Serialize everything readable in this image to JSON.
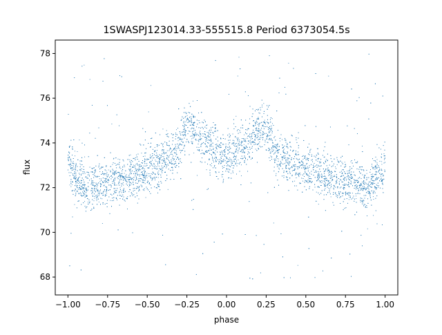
{
  "chart_data": {
    "type": "scatter",
    "title": "1SWASPJ123014.33-555515.8 Period 6373054.5s",
    "xlabel": "phase",
    "ylabel": "flux",
    "xlim": [
      -1.08,
      1.08
    ],
    "ylim": [
      67.2,
      78.6
    ],
    "xticks": [
      -1.0,
      -0.75,
      -0.5,
      -0.25,
      0.0,
      0.25,
      0.5,
      0.75,
      1.0
    ],
    "xtick_labels": [
      "−1.00",
      "−0.75",
      "−0.50",
      "−0.25",
      "0.00",
      "0.25",
      "0.50",
      "0.75",
      "1.00"
    ],
    "yticks": [
      68,
      70,
      72,
      74,
      76,
      78
    ],
    "ytick_labels": [
      "68",
      "70",
      "72",
      "74",
      "76",
      "78"
    ],
    "grid": false,
    "marker_color": "#1f77b4",
    "series": [
      {
        "x_range": [
          -1.0,
          1.0
        ],
        "symmetric_about_zero": true,
        "base_flux_profile": [
          [
            0.0,
            73.0
          ],
          [
            0.04,
            73.6
          ],
          [
            0.1,
            73.8
          ],
          [
            0.16,
            74.3
          ],
          [
            0.22,
            74.7
          ],
          [
            0.26,
            74.6
          ],
          [
            0.3,
            73.8
          ],
          [
            0.4,
            73.2
          ],
          [
            0.5,
            72.8
          ],
          [
            0.6,
            72.5
          ],
          [
            0.7,
            72.3
          ],
          [
            0.8,
            72.2
          ],
          [
            0.9,
            72.0
          ],
          [
            1.0,
            73.0
          ]
        ],
        "scatter_sigma": 0.7,
        "outlier_range": [
          67.8,
          78.0
        ]
      }
    ]
  }
}
